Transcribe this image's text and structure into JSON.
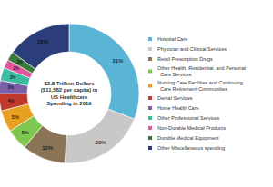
{
  "chart_data": {
    "type": "pie",
    "title": "$3.8 Trillion Dollars\n($11,582 per capita) in\nUS Healthcare\nSpending in 2019",
    "categories": [
      "Hospital Care",
      "Physician and Clinical Services",
      "Retail Prescription Drugs",
      "Other Health, Residential, and Personal\n  Care Services",
      "Nursing Care Facilities and Continuing\n  Care Retirement Communities",
      "Dental Services",
      "Home Health Care",
      "Other Professional Services",
      "Non-Durable Medical Products",
      "Durable Medical Equipment",
      "Other Miscellaneous spending"
    ],
    "values": [
      31,
      20,
      10,
      5,
      5,
      4,
      3,
      3,
      2,
      2,
      15
    ],
    "value_labels": [
      "31%",
      "20%",
      "10%",
      "5%",
      "5%",
      "4%",
      "3%",
      "3%",
      "2%",
      "2%",
      "15%"
    ],
    "colors": [
      "#5ab4d6",
      "#c8c8c8",
      "#8b7355",
      "#7ec850",
      "#e8a020",
      "#c0392b",
      "#7b5ea7",
      "#3dbba0",
      "#e056a0",
      "#3a7a3a",
      "#2c3e7a"
    ],
    "data_labels": true,
    "legend": "right"
  }
}
